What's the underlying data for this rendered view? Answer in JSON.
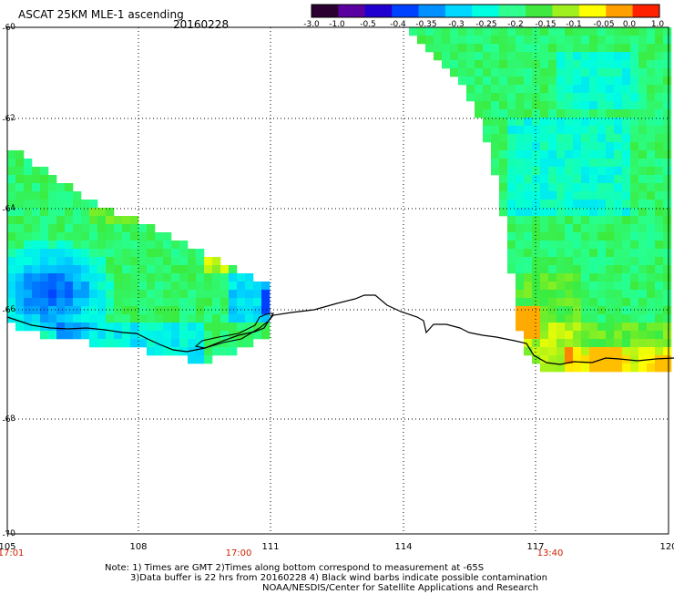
{
  "header": {
    "title": "ASCAT 25KM MLE-1 ascending",
    "date": "20160228"
  },
  "colorbar": {
    "labels": [
      "-3.0",
      "-1.0",
      "-0.5",
      "-0.4",
      "-0.35",
      "-0.3",
      "-0.25",
      "-0.2",
      "-0.15",
      "-0.1",
      "-0.05",
      "0.0",
      "1.0"
    ],
    "colors": [
      "#2a0030",
      "#5a00a0",
      "#2000d0",
      "#0040ff",
      "#0090ff",
      "#00d8ff",
      "#00ffe0",
      "#30ff90",
      "#40e840",
      "#a0f020",
      "#ffff00",
      "#ffa000",
      "#ff2000"
    ]
  },
  "axes": {
    "lat_labels": [
      "-60",
      "-62",
      "-64",
      "-66",
      "-68",
      "-70"
    ],
    "lon_labels": [
      "105",
      "108",
      "111",
      "114",
      "117",
      "120"
    ],
    "time_labels": [
      "17:01",
      "17:00",
      "13:40"
    ],
    "time_color": "#cc2200"
  },
  "notes": {
    "line1": "Note: 1) Times are GMT 2)Times along bottom correspond to measurement at -65S",
    "line2": "3)Data buffer is 22 hrs from 20160228 4) Black wind barbs indicate possible contamination",
    "line3": "NOAA/NESDIS/Center for Satellite Applications and Research"
  }
}
